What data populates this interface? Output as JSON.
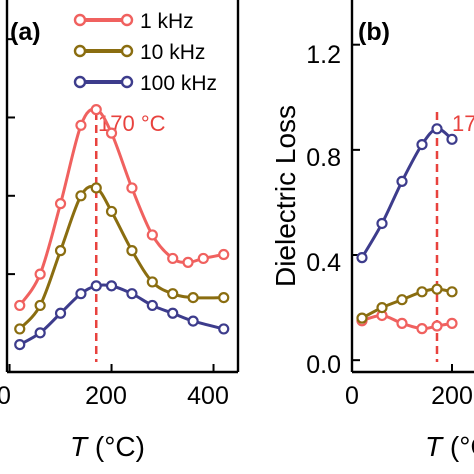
{
  "chart_data": [
    {
      "panel_label": "(a)",
      "type": "line",
      "xlabel_italic": "T",
      "xlabel_unit": " (°C)",
      "ylabel": "",
      "xticks": [
        "0",
        "200",
        "400"
      ],
      "yticks": [],
      "annotation": {
        "text": "170 °C",
        "x": 170,
        "color": "#e8423e"
      },
      "series": [
        {
          "name": "1 kHz",
          "color": "#f0615f",
          "x": [
            20,
            60,
            100,
            140,
            170,
            200,
            240,
            280,
            320,
            350,
            380,
            420
          ],
          "y": [
            0.12,
            0.2,
            0.38,
            0.58,
            0.62,
            0.56,
            0.42,
            0.3,
            0.24,
            0.23,
            0.24,
            0.25
          ]
        },
        {
          "name": "10 kHz",
          "color": "#8a6d10",
          "x": [
            20,
            60,
            100,
            140,
            170,
            200,
            240,
            280,
            320,
            360,
            420
          ],
          "y": [
            0.06,
            0.12,
            0.26,
            0.4,
            0.42,
            0.36,
            0.26,
            0.18,
            0.15,
            0.14,
            0.14
          ]
        },
        {
          "name": "100 kHz",
          "color": "#3d3c8c",
          "x": [
            20,
            60,
            100,
            140,
            170,
            200,
            240,
            280,
            320,
            360,
            420
          ],
          "y": [
            0.02,
            0.05,
            0.1,
            0.15,
            0.17,
            0.17,
            0.15,
            0.12,
            0.1,
            0.08,
            0.06
          ]
        }
      ]
    },
    {
      "panel_label": "(b)",
      "type": "line",
      "xlabel_italic": "T",
      "xlabel_unit": " (°C)",
      "ylabel": "Dielectric Loss",
      "xticks": [
        "0",
        "200"
      ],
      "yticks": [
        "0.0",
        "0.4",
        "0.8",
        "1.2"
      ],
      "annotation": {
        "text": "17",
        "x": 170,
        "color": "#e8423e"
      },
      "series": [
        {
          "name": "1 kHz",
          "color": "#f0615f",
          "x": [
            20,
            60,
            100,
            140,
            170,
            200
          ],
          "y": [
            0.15,
            0.17,
            0.14,
            0.12,
            0.13,
            0.14
          ]
        },
        {
          "name": "10 kHz",
          "color": "#8a6d10",
          "x": [
            20,
            60,
            100,
            140,
            170,
            200
          ],
          "y": [
            0.16,
            0.2,
            0.23,
            0.26,
            0.27,
            0.26
          ]
        },
        {
          "name": "100 kHz",
          "color": "#3d3c8c",
          "x": [
            20,
            60,
            100,
            140,
            170,
            200
          ],
          "y": [
            0.39,
            0.52,
            0.68,
            0.82,
            0.88,
            0.84
          ]
        }
      ]
    }
  ]
}
